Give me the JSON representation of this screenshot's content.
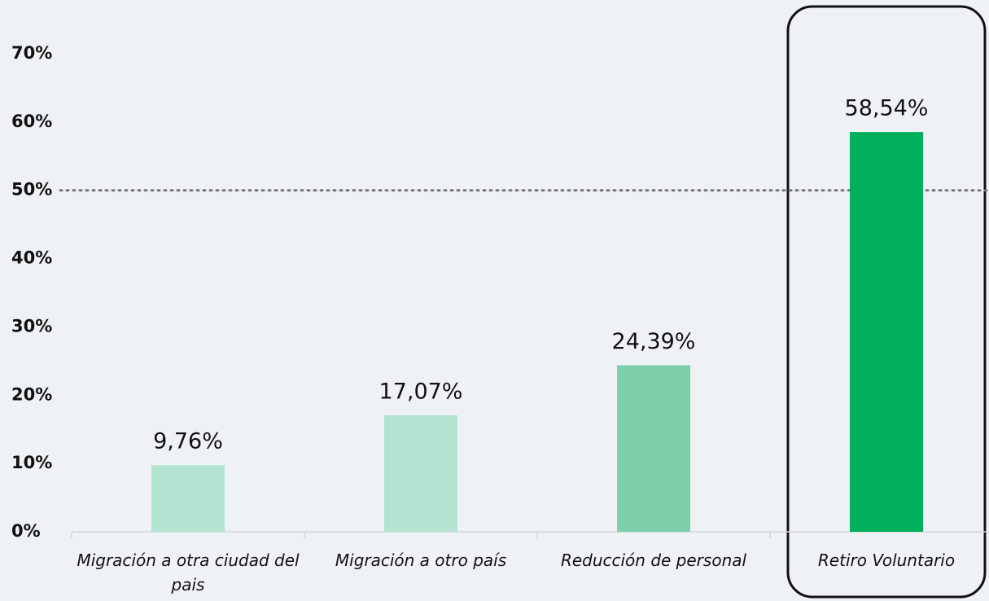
{
  "chart_data": {
    "type": "bar",
    "categories": [
      "Migración a otra ciudad del pais",
      "Migración a otro país",
      "Reducción de personal",
      "Retiro Voluntario"
    ],
    "values": [
      9.76,
      17.07,
      24.39,
      58.54
    ],
    "value_labels": [
      "9,76%",
      "17,07%",
      "24,39%",
      "58,54%"
    ],
    "colors": [
      "#b5e3d2",
      "#b5e3d2",
      "#7dcfab",
      "#00b05a"
    ],
    "ylim": [
      0,
      70
    ],
    "yticks": [
      {
        "value": 0,
        "label": "0%"
      },
      {
        "value": 10,
        "label": "10%"
      },
      {
        "value": 20,
        "label": "20%"
      },
      {
        "value": 30,
        "label": "30%"
      },
      {
        "value": 40,
        "label": "40%"
      },
      {
        "value": 50,
        "label": "50%"
      },
      {
        "value": 60,
        "label": "60%"
      },
      {
        "value": 70,
        "label": "70%"
      }
    ],
    "reference_line": 50,
    "grid": false
  }
}
